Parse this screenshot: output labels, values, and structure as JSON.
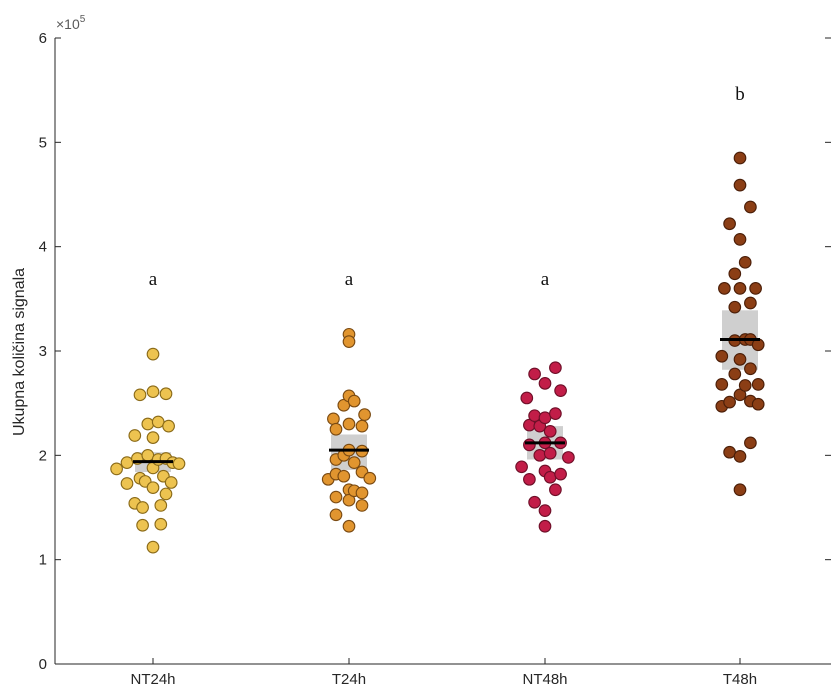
{
  "chart_data": {
    "type": "scatter",
    "ylabel": "Ukupna količina signala",
    "y_exponent_label": "×10",
    "y_exponent_power": "5",
    "ylim": [
      0,
      6
    ],
    "yticks": [
      "0",
      "1",
      "2",
      "3",
      "4",
      "5",
      "6"
    ],
    "grid": false,
    "categories": [
      "NT24h",
      "T24h",
      "NT48h",
      "T48h"
    ],
    "group_letters": [
      "a",
      "a",
      "a",
      "b"
    ],
    "colors": [
      "#EDC350",
      "#E1952F",
      "#C21D48",
      "#8B3E15"
    ],
    "edge_colors": [
      "#8A6A18",
      "#7A4A12",
      "#6E0F28",
      "#4A1E08"
    ],
    "median_box_color": "#CFCFCF",
    "series": [
      {
        "category": "NT24h",
        "median": 1.94,
        "box": [
          1.84,
          2.03
        ],
        "points": [
          {
            "x": -0.7,
            "y": 1.87
          },
          {
            "x": -0.5,
            "y": 1.93
          },
          {
            "x": -0.5,
            "y": 1.73
          },
          {
            "x": -0.35,
            "y": 2.19
          },
          {
            "x": -0.35,
            "y": 1.54
          },
          {
            "x": -0.25,
            "y": 2.58
          },
          {
            "x": -0.3,
            "y": 1.97
          },
          {
            "x": -0.25,
            "y": 1.78
          },
          {
            "x": -0.2,
            "y": 1.5
          },
          {
            "x": -0.2,
            "y": 1.33
          },
          {
            "x": -0.15,
            "y": 1.75
          },
          {
            "x": -0.1,
            "y": 2.3
          },
          {
            "x": -0.1,
            "y": 2.0
          },
          {
            "x": 0.0,
            "y": 2.97
          },
          {
            "x": 0.0,
            "y": 2.61
          },
          {
            "x": 0.0,
            "y": 2.17
          },
          {
            "x": 0.0,
            "y": 1.88
          },
          {
            "x": 0.0,
            "y": 1.69
          },
          {
            "x": 0.0,
            "y": 1.12
          },
          {
            "x": 0.1,
            "y": 2.32
          },
          {
            "x": 0.1,
            "y": 1.96
          },
          {
            "x": 0.15,
            "y": 1.52
          },
          {
            "x": 0.15,
            "y": 1.34
          },
          {
            "x": 0.2,
            "y": 1.8
          },
          {
            "x": 0.25,
            "y": 2.59
          },
          {
            "x": 0.25,
            "y": 1.97
          },
          {
            "x": 0.25,
            "y": 1.63
          },
          {
            "x": 0.3,
            "y": 2.28
          },
          {
            "x": 0.35,
            "y": 1.74
          },
          {
            "x": 0.38,
            "y": 1.93
          },
          {
            "x": 0.5,
            "y": 1.92
          }
        ]
      },
      {
        "category": "T24h",
        "median": 2.05,
        "box": [
          1.86,
          2.2
        ],
        "points": [
          {
            "x": -0.4,
            "y": 1.77
          },
          {
            "x": -0.3,
            "y": 2.35
          },
          {
            "x": -0.25,
            "y": 2.25
          },
          {
            "x": -0.25,
            "y": 1.96
          },
          {
            "x": -0.25,
            "y": 1.82
          },
          {
            "x": -0.25,
            "y": 1.6
          },
          {
            "x": -0.25,
            "y": 1.43
          },
          {
            "x": -0.1,
            "y": 2.48
          },
          {
            "x": -0.1,
            "y": 2.0
          },
          {
            "x": -0.1,
            "y": 1.8
          },
          {
            "x": 0.0,
            "y": 3.16
          },
          {
            "x": 0.0,
            "y": 3.09
          },
          {
            "x": 0.0,
            "y": 2.57
          },
          {
            "x": 0.0,
            "y": 2.3
          },
          {
            "x": 0.0,
            "y": 2.05
          },
          {
            "x": 0.0,
            "y": 1.67
          },
          {
            "x": 0.0,
            "y": 1.57
          },
          {
            "x": 0.0,
            "y": 1.32
          },
          {
            "x": 0.1,
            "y": 2.52
          },
          {
            "x": 0.1,
            "y": 1.93
          },
          {
            "x": 0.1,
            "y": 1.66
          },
          {
            "x": 0.25,
            "y": 2.28
          },
          {
            "x": 0.25,
            "y": 2.04
          },
          {
            "x": 0.25,
            "y": 1.84
          },
          {
            "x": 0.25,
            "y": 1.64
          },
          {
            "x": 0.25,
            "y": 1.52
          },
          {
            "x": 0.3,
            "y": 2.39
          },
          {
            "x": 0.4,
            "y": 1.78
          }
        ]
      },
      {
        "category": "NT48h",
        "median": 2.12,
        "box": [
          1.96,
          2.28
        ],
        "points": [
          {
            "x": -0.45,
            "y": 1.89
          },
          {
            "x": -0.35,
            "y": 2.55
          },
          {
            "x": -0.3,
            "y": 2.29
          },
          {
            "x": -0.3,
            "y": 2.1
          },
          {
            "x": -0.3,
            "y": 1.77
          },
          {
            "x": -0.2,
            "y": 2.78
          },
          {
            "x": -0.2,
            "y": 2.38
          },
          {
            "x": -0.2,
            "y": 1.55
          },
          {
            "x": -0.1,
            "y": 2.28
          },
          {
            "x": -0.1,
            "y": 2.0
          },
          {
            "x": 0.0,
            "y": 2.69
          },
          {
            "x": 0.0,
            "y": 2.36
          },
          {
            "x": 0.0,
            "y": 2.12
          },
          {
            "x": 0.0,
            "y": 1.85
          },
          {
            "x": 0.0,
            "y": 1.47
          },
          {
            "x": 0.0,
            "y": 1.32
          },
          {
            "x": 0.1,
            "y": 2.23
          },
          {
            "x": 0.1,
            "y": 2.02
          },
          {
            "x": 0.1,
            "y": 1.79
          },
          {
            "x": 0.2,
            "y": 2.84
          },
          {
            "x": 0.2,
            "y": 2.4
          },
          {
            "x": 0.2,
            "y": 1.67
          },
          {
            "x": 0.3,
            "y": 2.62
          },
          {
            "x": 0.3,
            "y": 2.12
          },
          {
            "x": 0.3,
            "y": 1.82
          },
          {
            "x": 0.45,
            "y": 1.98
          }
        ]
      },
      {
        "category": "T48h",
        "median": 3.11,
        "box": [
          2.82,
          3.39
        ],
        "points": [
          {
            "x": -0.35,
            "y": 2.95
          },
          {
            "x": -0.35,
            "y": 2.68
          },
          {
            "x": -0.35,
            "y": 2.47
          },
          {
            "x": -0.3,
            "y": 3.6
          },
          {
            "x": -0.2,
            "y": 4.22
          },
          {
            "x": -0.2,
            "y": 2.51
          },
          {
            "x": -0.2,
            "y": 2.03
          },
          {
            "x": -0.1,
            "y": 3.74
          },
          {
            "x": -0.1,
            "y": 3.42
          },
          {
            "x": -0.1,
            "y": 3.1
          },
          {
            "x": -0.1,
            "y": 2.78
          },
          {
            "x": 0.0,
            "y": 4.85
          },
          {
            "x": 0.0,
            "y": 4.59
          },
          {
            "x": 0.0,
            "y": 4.07
          },
          {
            "x": 0.0,
            "y": 3.6
          },
          {
            "x": 0.0,
            "y": 2.92
          },
          {
            "x": 0.0,
            "y": 2.58
          },
          {
            "x": 0.0,
            "y": 1.99
          },
          {
            "x": 0.0,
            "y": 1.67
          },
          {
            "x": 0.1,
            "y": 3.85
          },
          {
            "x": 0.1,
            "y": 3.11
          },
          {
            "x": 0.1,
            "y": 2.67
          },
          {
            "x": 0.2,
            "y": 4.38
          },
          {
            "x": 0.2,
            "y": 3.46
          },
          {
            "x": 0.2,
            "y": 3.11
          },
          {
            "x": 0.2,
            "y": 2.83
          },
          {
            "x": 0.2,
            "y": 2.52
          },
          {
            "x": 0.2,
            "y": 2.12
          },
          {
            "x": 0.3,
            "y": 3.6
          },
          {
            "x": 0.35,
            "y": 3.06
          },
          {
            "x": 0.35,
            "y": 2.68
          },
          {
            "x": 0.35,
            "y": 2.49
          }
        ]
      }
    ]
  }
}
